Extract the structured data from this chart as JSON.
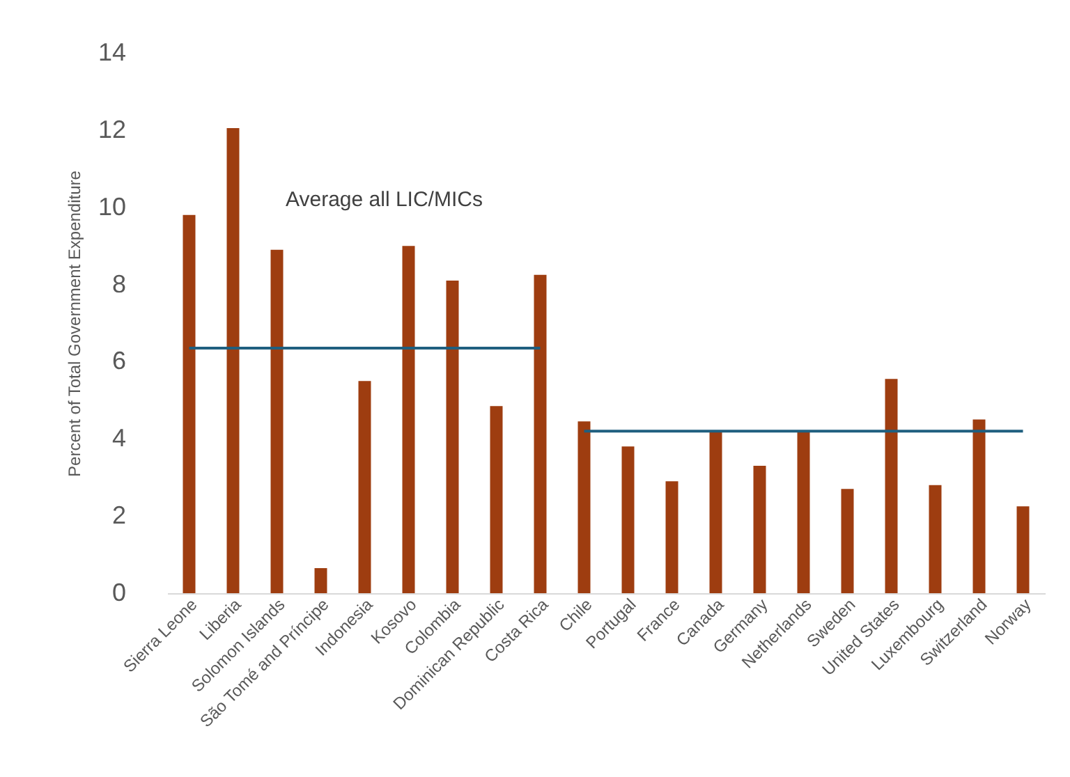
{
  "chart_data": {
    "type": "bar",
    "ylabel": "Percent of Total Government Expenditure",
    "categories": [
      "Sierra Leone",
      "Liberia",
      "Solomon Islands",
      "São Tomé and Príncipe",
      "Indonesia",
      "Kosovo",
      "Colombia",
      "Dominican Republic",
      "Costa Rica",
      "Chile",
      "Portugal",
      "France",
      "Canada",
      "Germany",
      "Netherlands",
      "Sweden",
      "United States",
      "Luxembourg",
      "Switzerland",
      "Norway"
    ],
    "series": [
      {
        "color": "#9e3d10",
        "values": [
          9.8,
          12.05,
          8.9,
          0.65,
          5.5,
          9.0,
          8.1,
          4.85,
          8.25,
          4.45,
          3.8,
          2.9,
          4.2,
          3.3,
          4.2,
          2.7,
          5.55,
          2.8,
          4.5,
          2.25
        ]
      },
      {
        "type": "line",
        "color": "#1f5f7f",
        "values": [
          6.35,
          6.35,
          6.35,
          6.35,
          6.35,
          6.35,
          6.35,
          6.35,
          6.35,
          null,
          null,
          null,
          null,
          null,
          null,
          null,
          null,
          null,
          null,
          null
        ]
      },
      {
        "type": "line",
        "color": "#1f5f7f",
        "values": [
          null,
          null,
          null,
          null,
          null,
          null,
          null,
          null,
          null,
          4.2,
          4.2,
          4.2,
          4.2,
          4.2,
          4.2,
          4.2,
          4.2,
          4.2,
          4.2,
          4.2
        ]
      }
    ],
    "annotations": [
      "Average all LIC/MICs"
    ],
    "ylim": [
      0,
      14
    ],
    "yticks": [
      0,
      2,
      4,
      6,
      8,
      10,
      12,
      14
    ],
    "grid": false
  }
}
